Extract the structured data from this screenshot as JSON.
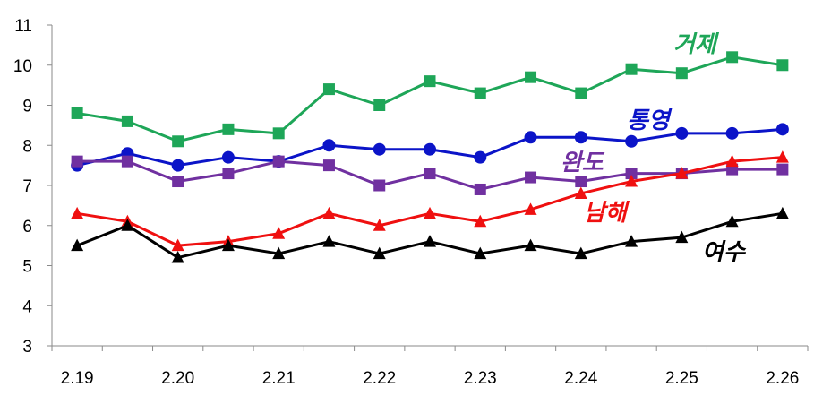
{
  "chart_data": {
    "type": "line",
    "title": "",
    "xlabel": "",
    "ylabel": "",
    "ylim": [
      3,
      11
    ],
    "y_ticks": [
      "3",
      "4",
      "5",
      "6",
      "7",
      "8",
      "9",
      "10",
      "11"
    ],
    "x_tick_labels": [
      "2.19",
      "2.20",
      "2.21",
      "2.22",
      "2.23",
      "2.24",
      "2.25",
      "2.26"
    ],
    "x": [
      1,
      2,
      3,
      4,
      5,
      6,
      7,
      8,
      9,
      10,
      11,
      12,
      13,
      14,
      15
    ],
    "grid": {
      "horizontal": false,
      "vertical": false
    },
    "series": [
      {
        "name": "거제",
        "color": "#1ea658",
        "marker": "square",
        "values": [
          8.8,
          8.6,
          8.1,
          8.4,
          8.3,
          9.4,
          9.0,
          9.6,
          9.3,
          9.7,
          9.3,
          9.9,
          9.8,
          10.2,
          10.0
        ]
      },
      {
        "name": "통영",
        "color": "#0b14c8",
        "marker": "circle",
        "values": [
          7.5,
          7.8,
          7.5,
          7.7,
          7.6,
          8.0,
          7.9,
          7.9,
          7.7,
          8.2,
          8.2,
          8.1,
          8.3,
          8.3,
          8.4
        ]
      },
      {
        "name": "완도",
        "color": "#7030a0",
        "marker": "square",
        "values": [
          7.6,
          7.6,
          7.1,
          7.3,
          7.6,
          7.5,
          7.0,
          7.3,
          6.9,
          7.2,
          7.1,
          7.3,
          7.3,
          7.4,
          7.4
        ]
      },
      {
        "name": "남해",
        "color": "#ef1010",
        "marker": "triangle",
        "values": [
          6.3,
          6.1,
          5.5,
          5.6,
          5.8,
          6.3,
          6.0,
          6.3,
          6.1,
          6.4,
          6.8,
          7.1,
          7.3,
          7.6,
          7.7
        ]
      },
      {
        "name": "여수",
        "color": "#000000",
        "marker": "triangle",
        "values": [
          5.5,
          6.0,
          5.2,
          5.5,
          5.3,
          5.6,
          5.3,
          5.6,
          5.3,
          5.5,
          5.3,
          5.6,
          5.7,
          6.1,
          6.3
        ]
      }
    ]
  }
}
